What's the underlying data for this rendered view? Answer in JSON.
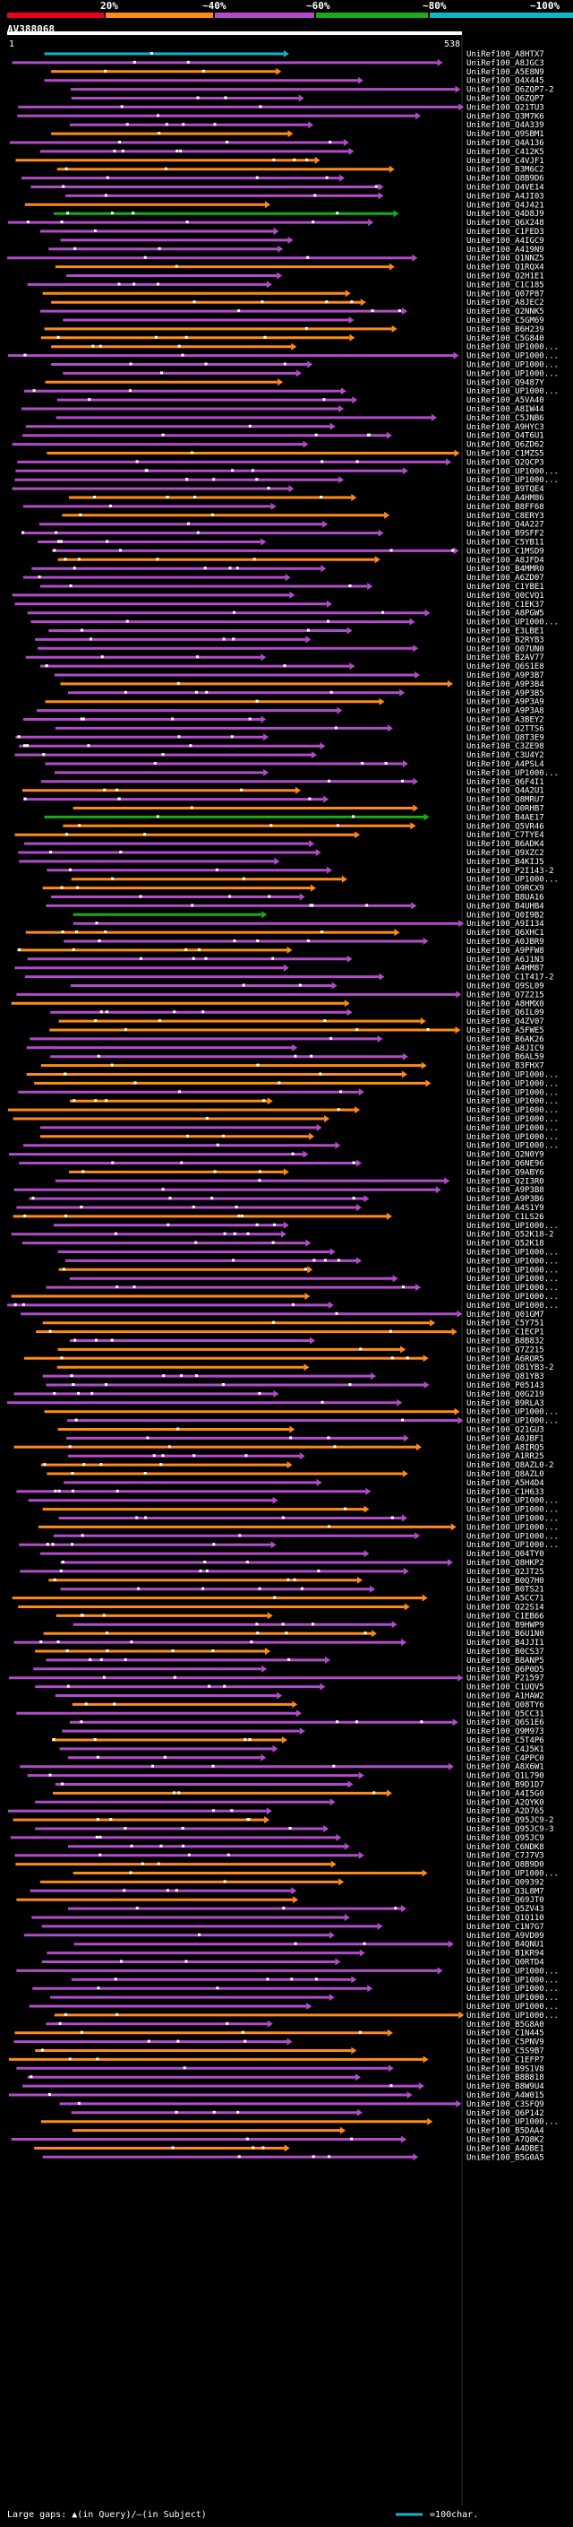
{
  "legend": {
    "ticks": [
      "20%",
      "~40%",
      "~60%",
      "~80%",
      "~100%"
    ],
    "colors": [
      "#e8001c",
      "#ff8a1a",
      "#b04cc8",
      "#1aaa1a",
      "#14b4c8"
    ]
  },
  "query": {
    "name": "AV388068",
    "start_label": "1",
    "end_label": "538"
  },
  "hits": [
    "UniRef100_A8HTX7",
    "UniRef100_A8JGC3",
    "UniRef100_A5E8N9",
    "UniRef100_Q4X445",
    "UniRef100_Q6ZQP7-2",
    "UniRef100_Q6ZQP7",
    "UniRef100_Q21TU3",
    "UniRef100_Q3M7K6",
    "UniRef100_Q4A339",
    "UniRef100_Q9SBM1",
    "UniRef100_Q4A136",
    "UniRef100_C412K5",
    "UniRef100_C4VJF1",
    "UniRef100_B3M6C2",
    "UniRef100_Q8B9D6",
    "UniRef100_Q4VE14",
    "UniRef100_A4JI03",
    "UniRef100_Q4J421",
    "UniRef100_Q4D8J9",
    "UniRef100_Q6X248",
    "UniRef100_C1FED3",
    "UniRef100_A4IGC9",
    "UniRef100_A419N9",
    "UniRef100_Q1NNZ5",
    "UniRef100_Q1RQX4",
    "UniRef100_Q2H1E1",
    "UniRef100_C1C185",
    "UniRef100_Q07P87",
    "UniRef100_A8JEC2",
    "UniRef100_Q2NNK5",
    "UniRef100_C5GM69",
    "UniRef100_B6H239",
    "UniRef100_C5G840",
    "UniRef100_UP1000...",
    "UniRef100_UP1000...",
    "UniRef100_UP1000...",
    "UniRef100_UP1000...",
    "UniRef100_Q9487Y",
    "UniRef100_UP1000...",
    "UniRef100_A5VA40",
    "UniRef100_A8IW44",
    "UniRef100_C5JNB6",
    "UniRef100_A9HYC3",
    "UniRef100_Q4T6U1",
    "UniRef100_Q6ZD62",
    "UniRef100_C1MZS5",
    "UniRef100_Q2QCP3",
    "UniRef100_UP1000...",
    "UniRef100_UP1000...",
    "UniRef100_B9TQE4",
    "UniRef100_A4HM86",
    "UniRef100_B8FF68",
    "UniRef100_C8ERY3",
    "UniRef100_Q4A227",
    "UniRef100_B9SFF2",
    "UniRef100_C5YB11",
    "UniRef100_C1MSD9",
    "UniRef100_A8JFD4",
    "UniRef100_B4MMR0",
    "UniRef100_A6ZD07",
    "UniRef100_C1YBE1",
    "UniRef100_Q0CVQ1",
    "UniRef100_C1EK37",
    "UniRef100_A8PGW5",
    "UniRef100_UP1000...",
    "UniRef100_E3LBE1",
    "UniRef100_B2RYB3",
    "UniRef100_Q07UN0",
    "UniRef100_B2AV77",
    "UniRef100_Q6S1E8",
    "UniRef100_A9P3B7",
    "UniRef100_A9P3B4",
    "UniRef100_A9P3B5",
    "UniRef100_A9P3A9",
    "UniRef100_A9P3A8",
    "UniRef100_A3BEY2",
    "UniRef100_Q2TTS6",
    "UniRef100_Q8T3E9",
    "UniRef100_C3ZE98",
    "UniRef100_C3U4Y2",
    "UniRef100_A4PSL4",
    "UniRef100_UP1000...",
    "UniRef100_Q6F4I1",
    "UniRef100_Q4A2U1",
    "UniRef100_Q8MRU7",
    "UniRef100_Q0RHB7",
    "UniRef100_B4AE17",
    "UniRef100_Q5VR46",
    "UniRef100_C7TYE4",
    "UniRef100_B6ADK4",
    "UniRef100_Q9XZC2",
    "UniRef100_B4KIJ5",
    "UniRef100_P2I143-2",
    "UniRef100_UP1000...",
    "UniRef100_Q9RCX9",
    "UniRef100_B8UA16",
    "UniRef100_B4UHB4",
    "UniRef100_Q0I9B2",
    "UniRef100_A9I134",
    "UniRef100_Q6XHC1",
    "UniRef100_A0JBR9",
    "UniRef100_A9PFW8",
    "UniRef100_A6J1N3",
    "UniRef100_A4HM87",
    "UniRef100_C1T417-2",
    "UniRef100_Q9SL09",
    "UniRef100_Q7Z215",
    "UniRef100_A8HMX0",
    "UniRef100_Q6IL09",
    "UniRef100_Q4ZV07",
    "UniRef100_A5FWE5",
    "UniRef100_B6AK26",
    "UniRef100_A8JIC9",
    "UniRef100_B6AL59",
    "UniRef100_B3FHX7",
    "UniRef100_UP1000...",
    "UniRef100_UP1000...",
    "UniRef100_UP1000...",
    "UniRef100_UP1000...",
    "UniRef100_UP1000...",
    "UniRef100_UP1000...",
    "UniRef100_UP1000...",
    "UniRef100_UP1000...",
    "UniRef100_UP1000...",
    "UniRef100_Q2N0Y9",
    "UniRef100_Q6NE96",
    "UniRef100_Q9ABY6",
    "UniRef100_Q2I3R0",
    "UniRef100_A9P3B8",
    "UniRef100_A9P3B6",
    "UniRef100_A4S1Y9",
    "UniRef100_C1LS26",
    "UniRef100_UP1000...",
    "UniRef100_Q52K18-2",
    "UniRef100_Q52K18",
    "UniRef100_UP1000...",
    "UniRef100_UP1000...",
    "UniRef100_UP1000...",
    "UniRef100_UP1000...",
    "UniRef100_UP1000...",
    "UniRef100_UP1000...",
    "UniRef100_UP1000...",
    "UniRef100_Q01GM7",
    "UniRef100_C5Y751",
    "UniRef100_C1ECP1",
    "UniRef100_B8B832",
    "UniRef100_Q7Z215",
    "UniRef100_A6ROR5",
    "UniRef100_Q81YB3-2",
    "UniRef100_Q81YB3",
    "UniRef100_P05143",
    "UniRef100_Q0G219",
    "UniRef100_B9RLA3",
    "UniRef100_UP1000...",
    "UniRef100_UP1000...",
    "UniRef100_Q21GU3",
    "UniRef100_A0JBF1",
    "UniRef100_A8IRQ5",
    "UniRef100_A1RR25",
    "UniRef100_Q8AZL0-2",
    "UniRef100_Q8AZL0",
    "UniRef100_A5H4D4",
    "UniRef100_C1H633",
    "UniRef100_UP1000...",
    "UniRef100_UP1000...",
    "UniRef100_UP1000...",
    "UniRef100_UP1000...",
    "UniRef100_UP1000...",
    "UniRef100_UP1000...",
    "UniRef100_Q04TY0",
    "UniRef100_Q8HKP2",
    "UniRef100_Q2JT25",
    "UniRef100_B0Q7H0",
    "UniRef100_B0TS21",
    "UniRef100_A5CC71",
    "UniRef100_Q22S14",
    "UniRef100_C1EB66",
    "UniRef100_B9HWP9",
    "UniRef100_B6U1N0",
    "UniRef100_B4JJI1",
    "UniRef100_B0CS37",
    "UniRef100_B8ANP5",
    "UniRef100_Q6P0D5",
    "UniRef100_P21597",
    "UniRef100_C1UQV5",
    "UniRef100_A1HAW2",
    "UniRef100_Q08TY6",
    "UniRef100_Q5CC31",
    "UniRef100_Q6S1E6",
    "UniRef100_Q9M973",
    "UniRef100_C5T4P6",
    "UniRef100_C4J5K1",
    "UniRef100_C4PPC0",
    "UniRef100_A8X6W1",
    "UniRef100_Q1L790",
    "UniRef100_B9D1D7",
    "UniRef100_A4I5G0",
    "UniRef100_A2QYK0",
    "UniRef100_A2D765",
    "UniRef100_Q95JC9-2",
    "UniRef100_Q95JC9-3",
    "UniRef100_Q95JC9",
    "UniRef100_C6NDK8",
    "UniRef100_C7J7V3",
    "UniRef100_Q8B9D0",
    "UniRef100_UP1000...",
    "UniRef100_Q09392",
    "UniRef100_Q3L8M7",
    "UniRef100_Q69JT0",
    "UniRef100_Q5ZV43",
    "UniRef100_Q1Q110",
    "UniRef100_C1N7G7",
    "UniRef100_A9VD09",
    "UniRef100_B4QNU1",
    "UniRef100_B1KR94",
    "UniRef100_Q0RTD4",
    "UniRef100_UP1000...",
    "UniRef100_UP1000...",
    "UniRef100_UP1000...",
    "UniRef100_UP1000...",
    "UniRef100_UP1000...",
    "UniRef100_UP1000...",
    "UniRef100_B5G8A0",
    "UniRef100_C1N445",
    "UniRef100_C5PNV9",
    "UniRef100_C5S9B7",
    "UniRef100_C1EFP7",
    "UniRef100_B9S1V8",
    "UniRef100_B8B818",
    "UniRef100_B8W9U4",
    "UniRef100_A4W015",
    "UniRef100_C3SFQ9",
    "UniRef100_Q6P142",
    "UniRef100_UP1000...",
    "UniRef100_B5DAA4",
    "UniRef100_A7Q8K2",
    "UniRef100_A4DBE1",
    "UniRef100_B5G0A5"
  ],
  "footer": {
    "left": "Large gaps: ▲(in Query)/—(in Subject)",
    "right": "=100char."
  }
}
